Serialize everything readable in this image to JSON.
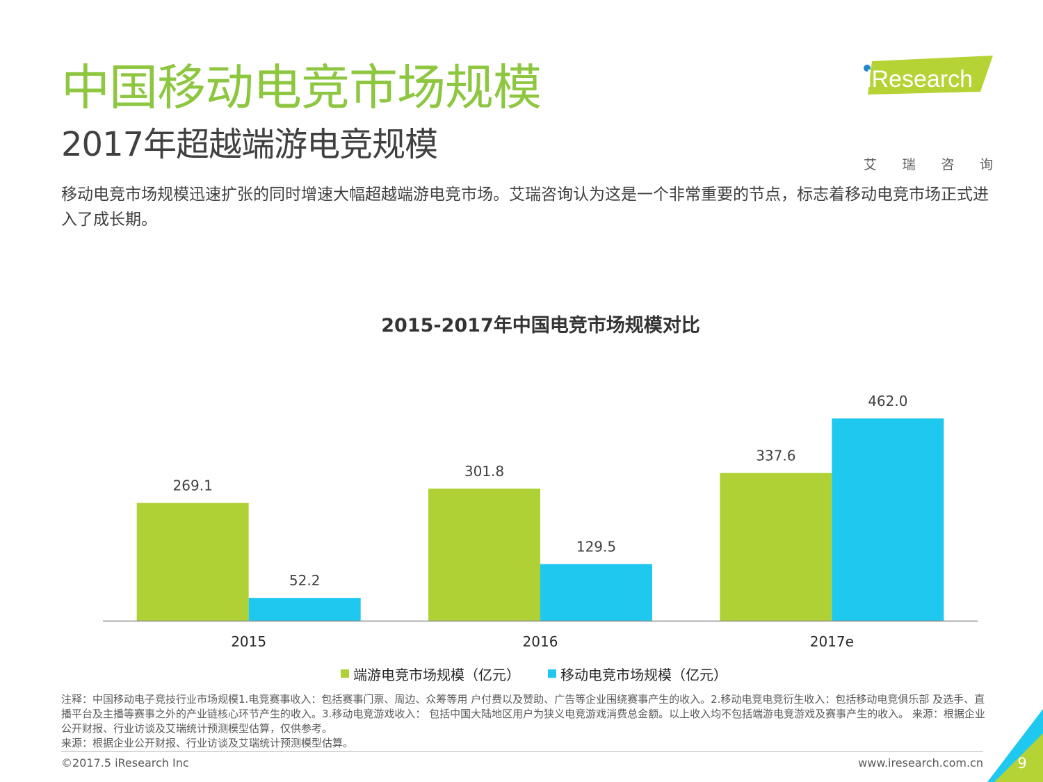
{
  "header": {
    "title": "中国移动电竞市场规模",
    "subtitle": "2017年超越端游电竞规模",
    "intro": "移动电竞市场规模迅速扩张的同时增速大幅超越端游电竞市场。艾瑞咨询认为这是一个非常重要的节点，标志着移动电竞市场正式进入了成长期。"
  },
  "logo": {
    "brand": "iResearch",
    "chars": [
      "艾",
      "瑞",
      "咨",
      "询"
    ]
  },
  "colors": {
    "title_green": "#8dc63f",
    "series_pc": "#b0d136",
    "series_mobile": "#1fc8ee",
    "corner_green": "#b5d334",
    "corner_blue": "#1fc8ee"
  },
  "chart_data": {
    "type": "bar",
    "title": "2015-2017年中国电竞市场规模对比",
    "categories": [
      "2015",
      "2016",
      "2017e"
    ],
    "series": [
      {
        "name": "端游电竞市场规模（亿元）",
        "values": [
          269.1,
          301.8,
          337.6
        ],
        "color": "#b0d136"
      },
      {
        "name": "移动电竞市场规模（亿元）",
        "values": [
          52.2,
          129.5,
          462.0
        ],
        "color": "#1fc8ee"
      }
    ],
    "ylim": [
      0,
      500
    ],
    "value_format": 1,
    "grid": false,
    "legend_position": "bottom"
  },
  "footer": {
    "note": "注释：中国移动电子竞技行业市场规模1.电竞赛事收入：包括赛事门票、周边、众筹等用 户付费以及赞助、广告等企业围绕赛事产生的收入。2.移动电竞电竞衍生收入：包括移动电竞俱乐部 及选手、直播平台及主播等赛事之外的产业链核心环节产生的收入。3.移动电竞游戏收入： 包括中国大陆地区用户为狭义电竞游戏消费总金额。以上收入均不包括端游电竞游戏及赛事产生的收入。 来源：根据企业公开财报、行业访谈及艾瑞统计预测模型估算，仅供参考。",
    "source": "来源：根据企业公开财报、行业访谈及艾瑞统计预测模型估算。",
    "copyright": "©2017.5 iResearch Inc",
    "website": "www.iresearch.com.cn",
    "page_number": "9"
  }
}
